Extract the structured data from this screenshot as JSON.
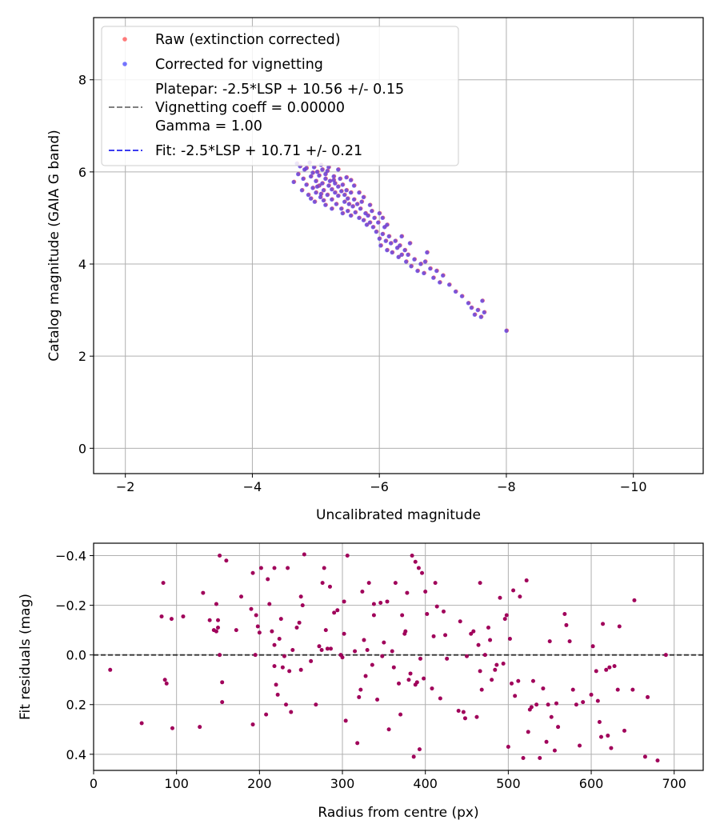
{
  "chart_data": [
    {
      "type": "scatter",
      "xlabel": "Uncalibrated magnitude",
      "ylabel": "Catalog magnitude (GAIA G band)",
      "xlim": [
        -1.5,
        -11.1
      ],
      "ylim": [
        9.35,
        -0.55
      ],
      "xticks": [
        -2,
        -4,
        -6,
        -8,
        -10
      ],
      "xtick_labels": [
        "−2",
        "−4",
        "−6",
        "−8",
        "−10"
      ],
      "yticks": [
        0,
        2,
        4,
        6,
        8
      ],
      "ytick_labels": [
        "0",
        "2",
        "4",
        "6",
        "8"
      ],
      "grid": true,
      "legend_position": "top-left",
      "legend": {
        "raw": "Raw (extinction corrected)",
        "corrected": "Corrected for vignetting",
        "platepar_line1": "Platepar: -2.5*LSP + 10.56 +/- 0.15",
        "platepar_line2": "Vignetting coeff = 0.00000",
        "platepar_line3": "Gamma = 1.00",
        "fit": "Fit: -2.5*LSP + 10.71 +/- 0.21"
      },
      "lines": [
        {
          "name": "Platepar",
          "slope": -2.5,
          "intercept": 10.56,
          "color": "#808080",
          "style": "dashed"
        },
        {
          "name": "Fit",
          "slope": -2.5,
          "intercept": 10.71,
          "color": "#3b3bf0",
          "style": "dashed"
        }
      ],
      "series": [
        {
          "name": "Raw (extinction corrected)",
          "color": "#ff5a5a"
        },
        {
          "name": "Corrected for vignetting",
          "color": "#3a3aff"
        }
      ],
      "points": [
        [
          -4.65,
          5.78
        ],
        [
          -4.7,
          6.18
        ],
        [
          -4.72,
          5.95
        ],
        [
          -4.75,
          6.12
        ],
        [
          -4.78,
          5.6
        ],
        [
          -4.8,
          5.85
        ],
        [
          -4.82,
          6.05
        ],
        [
          -4.85,
          5.72
        ],
        [
          -4.88,
          5.5
        ],
        [
          -4.9,
          6.2
        ],
        [
          -4.92,
          5.9
        ],
        [
          -4.95,
          5.65
        ],
        [
          -4.97,
          6.1
        ],
        [
          -5.0,
          5.8
        ],
        [
          -5.0,
          5.55
        ],
        [
          -5.02,
          6.0
        ],
        [
          -5.05,
          5.7
        ],
        [
          -5.05,
          5.92
        ],
        [
          -5.07,
          5.45
        ],
        [
          -5.1,
          6.05
        ],
        [
          -5.1,
          5.75
        ],
        [
          -5.12,
          5.6
        ],
        [
          -5.15,
          5.85
        ],
        [
          -5.15,
          5.95
        ],
        [
          -5.18,
          5.5
        ],
        [
          -5.2,
          5.7
        ],
        [
          -5.2,
          6.1
        ],
        [
          -5.22,
          5.8
        ],
        [
          -5.25,
          5.62
        ],
        [
          -5.25,
          5.4
        ],
        [
          -5.28,
          5.9
        ],
        [
          -5.3,
          5.55
        ],
        [
          -5.3,
          5.75
        ],
        [
          -5.32,
          5.3
        ],
        [
          -5.35,
          5.68
        ],
        [
          -5.35,
          5.48
        ],
        [
          -5.38,
          5.85
        ],
        [
          -5.4,
          5.2
        ],
        [
          -5.4,
          5.58
        ],
        [
          -5.42,
          5.72
        ],
        [
          -5.45,
          5.35
        ],
        [
          -5.45,
          5.5
        ],
        [
          -5.48,
          5.6
        ],
        [
          -5.5,
          5.15
        ],
        [
          -5.5,
          5.42
        ],
        [
          -5.52,
          5.3
        ],
        [
          -5.55,
          5.55
        ],
        [
          -5.55,
          5.05
        ],
        [
          -5.58,
          5.25
        ],
        [
          -5.6,
          5.4
        ],
        [
          -5.62,
          5.12
        ],
        [
          -5.65,
          5.3
        ],
        [
          -5.68,
          5.0
        ],
        [
          -5.7,
          5.2
        ],
        [
          -5.72,
          5.35
        ],
        [
          -5.75,
          4.95
        ],
        [
          -5.78,
          5.1
        ],
        [
          -5.8,
          4.85
        ],
        [
          -5.82,
          5.05
        ],
        [
          -5.85,
          4.9
        ],
        [
          -5.88,
          5.15
        ],
        [
          -5.9,
          4.8
        ],
        [
          -5.92,
          5.0
        ],
        [
          -5.95,
          4.7
        ],
        [
          -5.98,
          4.9
        ],
        [
          -6.0,
          4.55
        ],
        [
          -6.0,
          5.1
        ],
        [
          -6.02,
          4.4
        ],
        [
          -6.05,
          4.65
        ],
        [
          -6.08,
          4.8
        ],
        [
          -6.1,
          4.5
        ],
        [
          -6.12,
          4.3
        ],
        [
          -6.15,
          4.6
        ],
        [
          -6.18,
          4.45
        ],
        [
          -6.2,
          4.25
        ],
        [
          -6.25,
          4.5
        ],
        [
          -6.28,
          4.35
        ],
        [
          -6.3,
          4.15
        ],
        [
          -6.32,
          4.4
        ],
        [
          -6.35,
          4.2
        ],
        [
          -6.4,
          4.3
        ],
        [
          -6.42,
          4.05
        ],
        [
          -6.45,
          4.2
        ],
        [
          -6.5,
          3.95
        ],
        [
          -6.55,
          4.1
        ],
        [
          -6.6,
          3.85
        ],
        [
          -6.65,
          4.0
        ],
        [
          -6.7,
          3.8
        ],
        [
          -6.72,
          4.05
        ],
        [
          -6.8,
          3.9
        ],
        [
          -6.85,
          3.7
        ],
        [
          -6.9,
          3.85
        ],
        [
          -6.95,
          3.6
        ],
        [
          -7.0,
          3.75
        ],
        [
          -7.1,
          3.55
        ],
        [
          -7.2,
          3.4
        ],
        [
          -7.3,
          3.3
        ],
        [
          -7.4,
          3.15
        ],
        [
          -7.45,
          3.05
        ],
        [
          -7.5,
          2.9
        ],
        [
          -7.55,
          3.0
        ],
        [
          -7.6,
          2.85
        ],
        [
          -7.62,
          3.2
        ],
        [
          -7.65,
          2.95
        ],
        [
          -8.0,
          2.55
        ],
        [
          -4.85,
          6.08
        ],
        [
          -5.08,
          6.15
        ],
        [
          -5.18,
          6.02
        ],
        [
          -4.98,
          5.35
        ],
        [
          -5.6,
          5.7
        ],
        [
          -5.25,
          5.2
        ],
        [
          -5.75,
          5.45
        ],
        [
          -6.05,
          5.0
        ],
        [
          -6.35,
          4.6
        ],
        [
          -5.55,
          5.82
        ],
        [
          -4.92,
          5.42
        ],
        [
          -5.35,
          6.05
        ],
        [
          -5.12,
          5.38
        ],
        [
          -5.48,
          5.88
        ],
        [
          -5.68,
          5.55
        ],
        [
          -5.85,
          5.28
        ],
        [
          -6.12,
          4.85
        ],
        [
          -6.48,
          4.45
        ],
        [
          -6.75,
          4.25
        ],
        [
          -5.02,
          5.68
        ],
        [
          -5.28,
          5.82
        ],
        [
          -5.42,
          5.1
        ],
        [
          -5.08,
          5.52
        ],
        [
          -4.95,
          5.98
        ],
        [
          -5.15,
          5.28
        ]
      ]
    },
    {
      "type": "scatter",
      "xlabel": "Radius from centre (px)",
      "ylabel": "Fit residuals (mag)",
      "xlim": [
        0,
        735
      ],
      "ylim": [
        -0.45,
        0.465
      ],
      "xticks": [
        0,
        100,
        200,
        300,
        400,
        500,
        600,
        700
      ],
      "xtick_labels": [
        "0",
        "100",
        "200",
        "300",
        "400",
        "500",
        "600",
        "700"
      ],
      "yticks": [
        -0.4,
        -0.2,
        0.0,
        0.2,
        0.4
      ],
      "ytick_labels": [
        "−0.4",
        "−0.2",
        "0.0",
        "0.2",
        "0.4"
      ],
      "grid": true,
      "reference_line": 0.0,
      "series": [
        {
          "name": "Residuals",
          "color": "#a0005a"
        }
      ],
      "points": [
        [
          20,
          0.06
        ],
        [
          58,
          0.275
        ],
        [
          82,
          -0.155
        ],
        [
          84,
          -0.29
        ],
        [
          86,
          0.1
        ],
        [
          88,
          0.115
        ],
        [
          95,
          0.295
        ],
        [
          94,
          -0.145
        ],
        [
          108,
          -0.155
        ],
        [
          128,
          0.29
        ],
        [
          132,
          -0.25
        ],
        [
          140,
          -0.14
        ],
        [
          145,
          -0.1
        ],
        [
          148,
          -0.095
        ],
        [
          148,
          -0.205
        ],
        [
          150,
          -0.11
        ],
        [
          150,
          -0.14
        ],
        [
          152,
          0.0
        ],
        [
          155,
          0.11
        ],
        [
          155,
          0.19
        ],
        [
          152,
          -0.4
        ],
        [
          160,
          -0.38
        ],
        [
          172,
          -0.1
        ],
        [
          178,
          -0.235
        ],
        [
          190,
          -0.185
        ],
        [
          192,
          0.28
        ],
        [
          192,
          -0.33
        ],
        [
          195,
          0.0
        ],
        [
          196,
          -0.16
        ],
        [
          198,
          -0.115
        ],
        [
          200,
          -0.09
        ],
        [
          202,
          -0.35
        ],
        [
          208,
          0.24
        ],
        [
          210,
          -0.305
        ],
        [
          212,
          -0.205
        ],
        [
          215,
          -0.095
        ],
        [
          218,
          0.045
        ],
        [
          218,
          -0.04
        ],
        [
          218,
          -0.35
        ],
        [
          220,
          0.12
        ],
        [
          222,
          0.16
        ],
        [
          224,
          -0.065
        ],
        [
          226,
          -0.145
        ],
        [
          228,
          0.05
        ],
        [
          230,
          0.005
        ],
        [
          232,
          0.2
        ],
        [
          234,
          -0.35
        ],
        [
          236,
          0.065
        ],
        [
          238,
          0.23
        ],
        [
          240,
          -0.02
        ],
        [
          245,
          -0.11
        ],
        [
          248,
          -0.13
        ],
        [
          250,
          0.06
        ],
        [
          250,
          -0.235
        ],
        [
          252,
          -0.2
        ],
        [
          254,
          -0.405
        ],
        [
          262,
          0.025
        ],
        [
          268,
          0.2
        ],
        [
          272,
          -0.035
        ],
        [
          275,
          -0.02
        ],
        [
          276,
          -0.29
        ],
        [
          278,
          -0.35
        ],
        [
          280,
          -0.1
        ],
        [
          282,
          -0.025
        ],
        [
          285,
          -0.275
        ],
        [
          286,
          -0.025
        ],
        [
          290,
          -0.17
        ],
        [
          294,
          -0.18
        ],
        [
          298,
          0.0
        ],
        [
          300,
          0.01
        ],
        [
          302,
          -0.085
        ],
        [
          302,
          -0.215
        ],
        [
          304,
          0.265
        ],
        [
          306,
          -0.4
        ],
        [
          315,
          -0.015
        ],
        [
          318,
          0.355
        ],
        [
          320,
          0.17
        ],
        [
          322,
          0.14
        ],
        [
          324,
          -0.255
        ],
        [
          326,
          -0.06
        ],
        [
          328,
          0.085
        ],
        [
          330,
          -0.02
        ],
        [
          332,
          -0.29
        ],
        [
          336,
          0.04
        ],
        [
          338,
          -0.16
        ],
        [
          338,
          -0.205
        ],
        [
          342,
          0.18
        ],
        [
          346,
          -0.21
        ],
        [
          348,
          0.005
        ],
        [
          350,
          -0.05
        ],
        [
          354,
          -0.215
        ],
        [
          356,
          0.3
        ],
        [
          360,
          -0.015
        ],
        [
          362,
          0.05
        ],
        [
          364,
          -0.29
        ],
        [
          368,
          0.115
        ],
        [
          370,
          0.24
        ],
        [
          372,
          -0.16
        ],
        [
          375,
          -0.085
        ],
        [
          376,
          -0.095
        ],
        [
          378,
          -0.25
        ],
        [
          380,
          0.1
        ],
        [
          382,
          0.075
        ],
        [
          384,
          -0.4
        ],
        [
          386,
          0.41
        ],
        [
          388,
          0.12
        ],
        [
          388,
          -0.375
        ],
        [
          390,
          0.11
        ],
        [
          392,
          -0.35
        ],
        [
          393,
          0.38
        ],
        [
          394,
          0.015
        ],
        [
          396,
          -0.33
        ],
        [
          398,
          0.095
        ],
        [
          400,
          -0.255
        ],
        [
          402,
          -0.165
        ],
        [
          408,
          0.135
        ],
        [
          410,
          -0.075
        ],
        [
          412,
          -0.29
        ],
        [
          414,
          -0.195
        ],
        [
          418,
          0.175
        ],
        [
          422,
          -0.175
        ],
        [
          424,
          -0.08
        ],
        [
          426,
          0.015
        ],
        [
          440,
          0.225
        ],
        [
          442,
          -0.135
        ],
        [
          446,
          0.23
        ],
        [
          448,
          0.255
        ],
        [
          450,
          0.005
        ],
        [
          455,
          -0.085
        ],
        [
          458,
          -0.095
        ],
        [
          462,
          0.25
        ],
        [
          464,
          -0.04
        ],
        [
          466,
          0.065
        ],
        [
          466,
          -0.29
        ],
        [
          468,
          0.14
        ],
        [
          472,
          0.0
        ],
        [
          476,
          -0.11
        ],
        [
          478,
          -0.06
        ],
        [
          480,
          0.1
        ],
        [
          484,
          0.06
        ],
        [
          486,
          0.04
        ],
        [
          490,
          -0.23
        ],
        [
          494,
          0.035
        ],
        [
          496,
          -0.145
        ],
        [
          498,
          -0.16
        ],
        [
          500,
          0.37
        ],
        [
          502,
          -0.065
        ],
        [
          504,
          0.115
        ],
        [
          506,
          -0.26
        ],
        [
          508,
          0.165
        ],
        [
          512,
          0.105
        ],
        [
          514,
          -0.235
        ],
        [
          518,
          0.415
        ],
        [
          522,
          -0.3
        ],
        [
          524,
          0.31
        ],
        [
          526,
          0.22
        ],
        [
          528,
          0.21
        ],
        [
          530,
          0.105
        ],
        [
          534,
          0.2
        ],
        [
          538,
          0.415
        ],
        [
          542,
          0.135
        ],
        [
          546,
          0.35
        ],
        [
          548,
          0.2
        ],
        [
          550,
          -0.055
        ],
        [
          552,
          0.25
        ],
        [
          556,
          0.385
        ],
        [
          558,
          0.195
        ],
        [
          560,
          0.29
        ],
        [
          568,
          -0.165
        ],
        [
          570,
          -0.12
        ],
        [
          574,
          -0.055
        ],
        [
          578,
          0.14
        ],
        [
          582,
          0.2
        ],
        [
          586,
          0.365
        ],
        [
          590,
          0.19
        ],
        [
          600,
          0.16
        ],
        [
          602,
          -0.035
        ],
        [
          606,
          0.065
        ],
        [
          608,
          0.185
        ],
        [
          610,
          0.27
        ],
        [
          612,
          0.33
        ],
        [
          614,
          -0.125
        ],
        [
          618,
          0.06
        ],
        [
          620,
          0.325
        ],
        [
          622,
          0.05
        ],
        [
          624,
          0.375
        ],
        [
          628,
          0.045
        ],
        [
          632,
          0.14
        ],
        [
          634,
          -0.115
        ],
        [
          640,
          0.305
        ],
        [
          650,
          0.14
        ],
        [
          652,
          -0.22
        ],
        [
          665,
          0.41
        ],
        [
          668,
          0.17
        ],
        [
          680,
          0.425
        ],
        [
          690,
          0.0
        ]
      ]
    }
  ]
}
